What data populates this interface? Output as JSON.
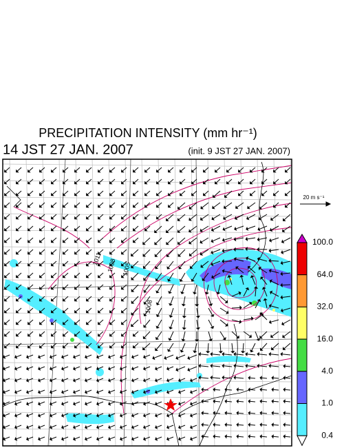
{
  "header": {
    "title": "PRECIPITATION INTENSITY (mm hr⁻¹)",
    "valid_time": "14 JST 27 JAN. 2007",
    "init_time": "(init. 9 JST 27 JAN. 2007)"
  },
  "vector_legend": {
    "label": "20 m s⁻¹"
  },
  "colorbar": {
    "labels": [
      "100.0",
      "64.0",
      "32.0",
      "16.0",
      "4.0",
      "1.0",
      "0.4"
    ],
    "colors": [
      "#cc00cc",
      "#ee0000",
      "#ff9933",
      "#ffff66",
      "#44dd44",
      "#6666ff",
      "#55eeff",
      "#ffffff"
    ]
  },
  "map": {
    "isobar_labels": [
      "1011",
      "1008",
      "1005",
      "1008"
    ]
  }
}
